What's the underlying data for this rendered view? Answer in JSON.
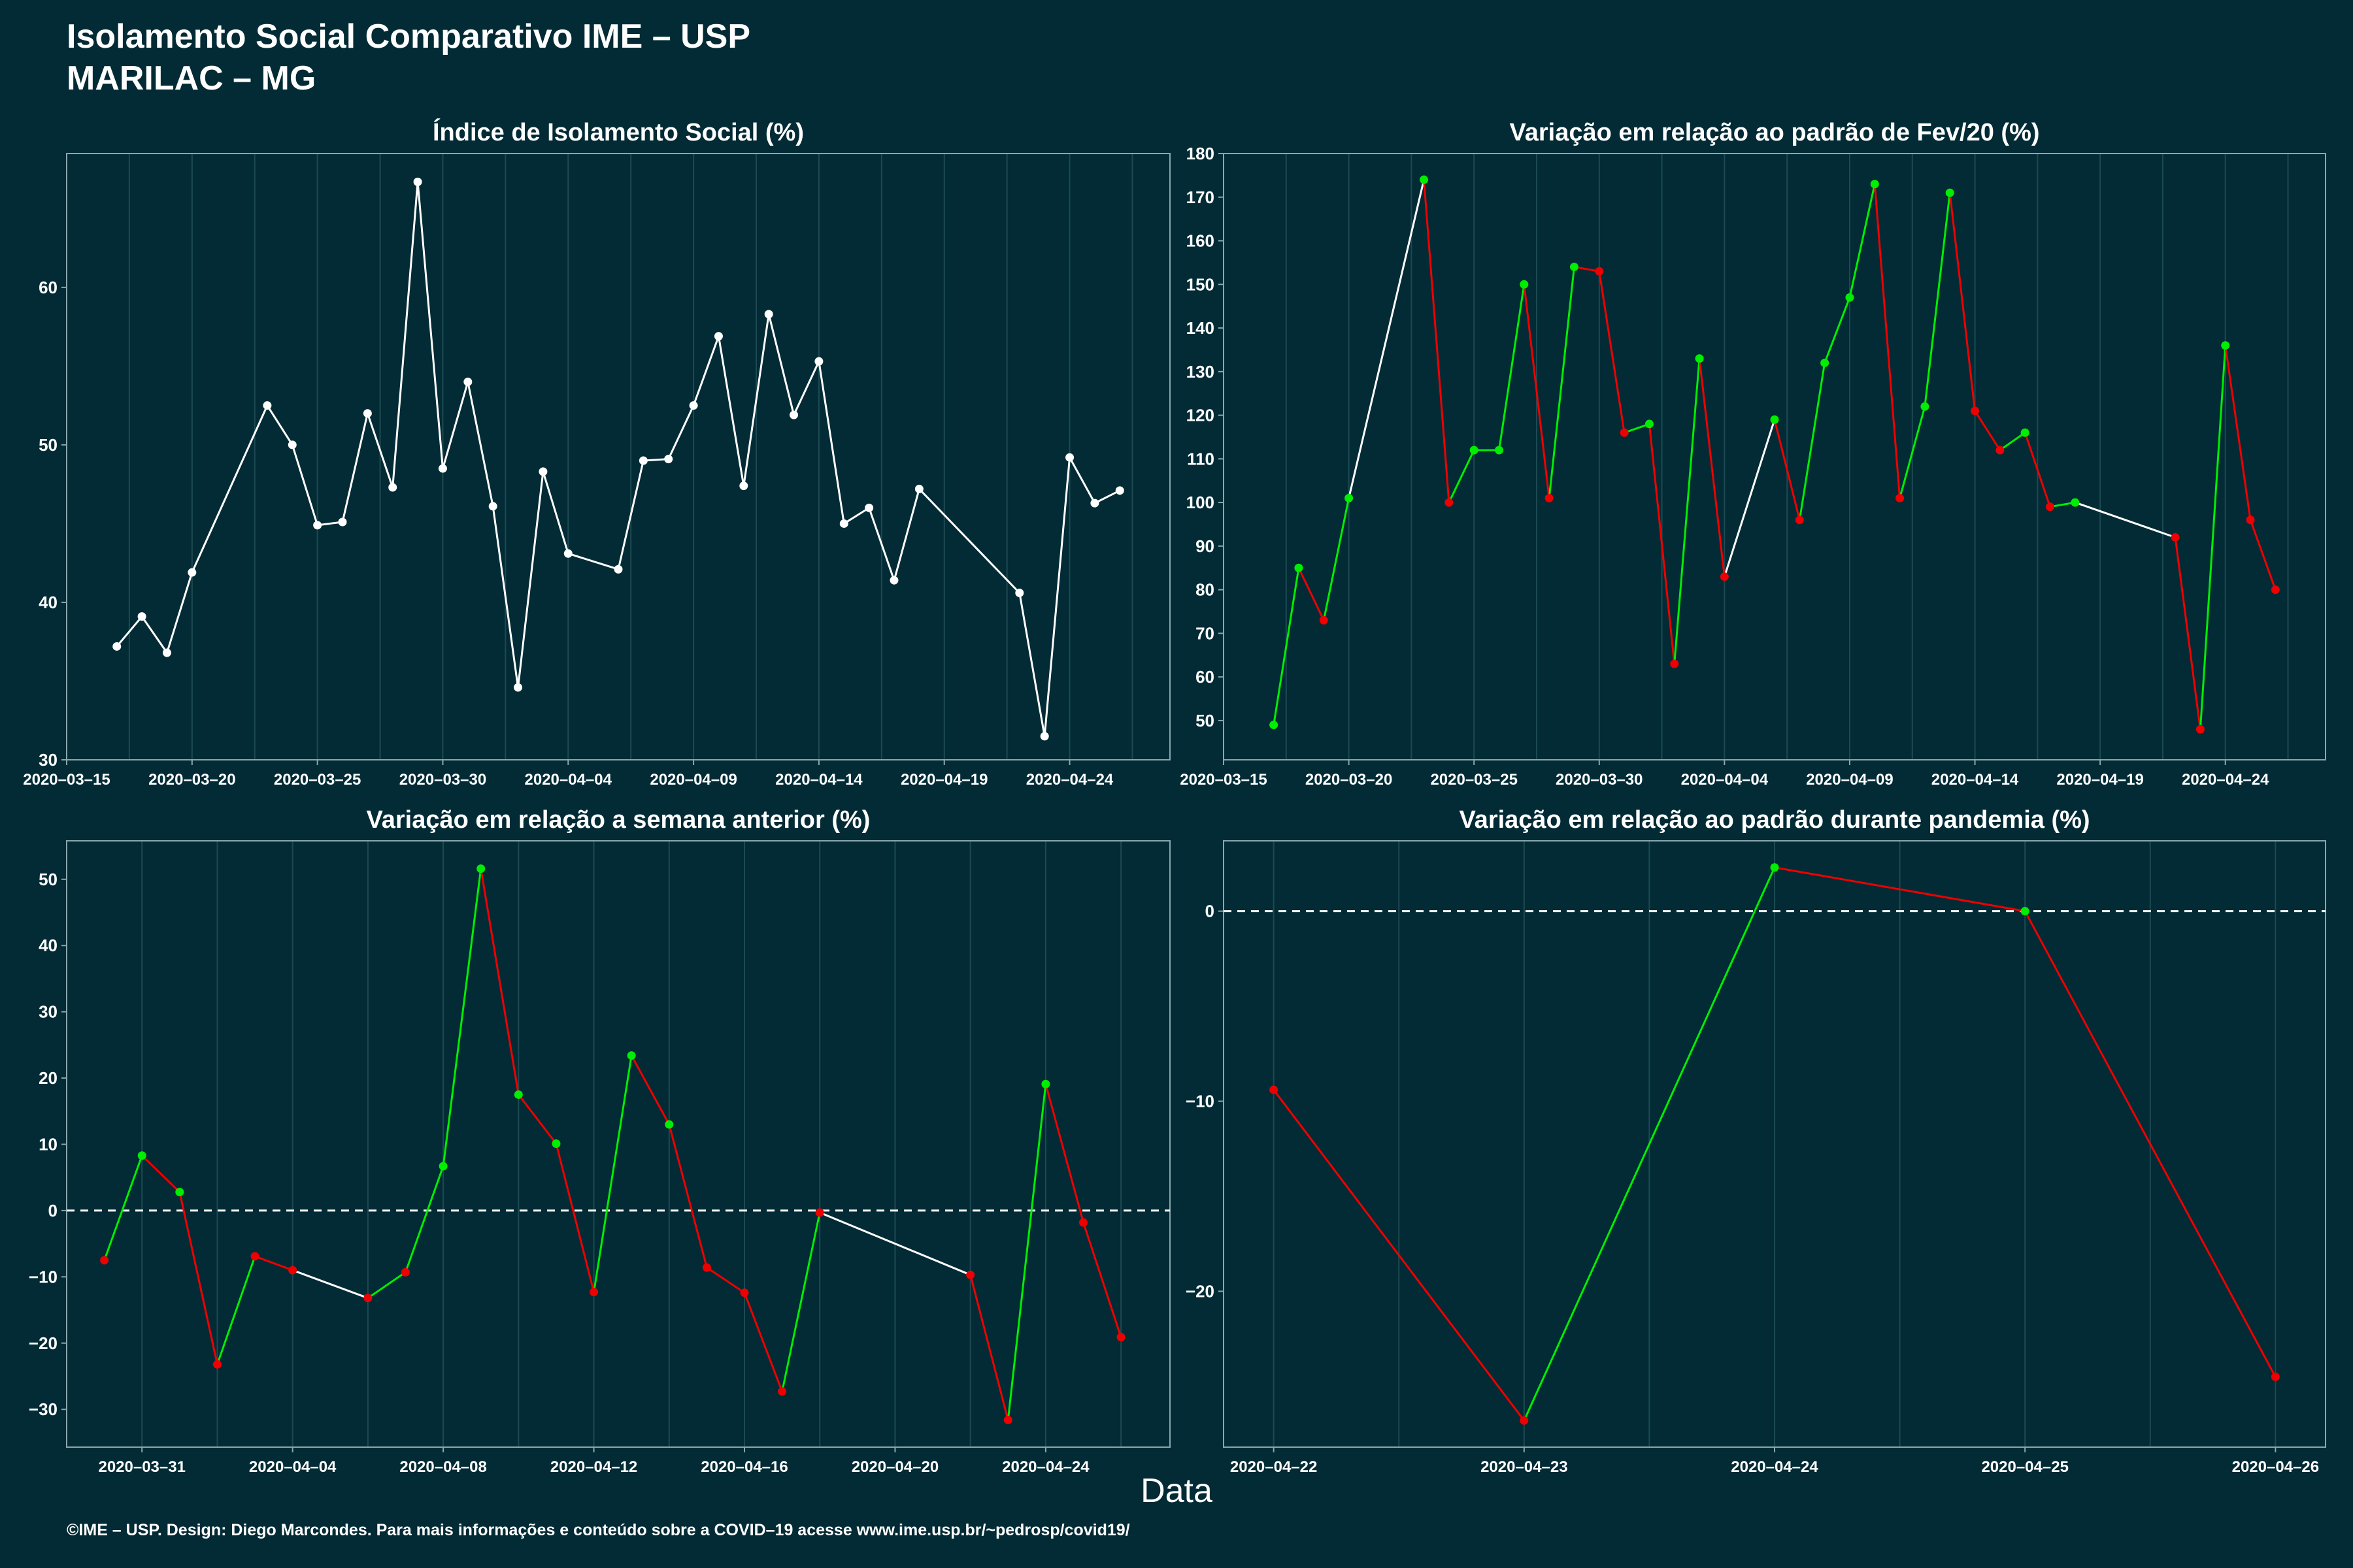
{
  "header": {
    "title": "Isolamento Social Comparativo IME – USP",
    "subtitle": "MARILAC – MG"
  },
  "x_axis_title": "Data",
  "footer": "©IME – USP. Design: Diego Marcondes. Para mais informações e conteúdo sobre a COVID–19 acesse www.ime.usp.br/~pedrosp/covid19/",
  "colors": {
    "background": "#022b35",
    "grid": "#1d4a52",
    "axis": "#8aa7ad",
    "neutral": "#ffffff",
    "positive": "#00ee00",
    "negative": "#ee0000"
  },
  "chart_data": [
    {
      "id": "isolation",
      "type": "line",
      "title": "Índice de Isolamento Social (%)",
      "color_mode": "white",
      "x": [
        "2020-03-17",
        "2020-03-18",
        "2020-03-19",
        "2020-03-20",
        "2020-03-23",
        "2020-03-24",
        "2020-03-25",
        "2020-03-26",
        "2020-03-27",
        "2020-03-28",
        "2020-03-29",
        "2020-03-30",
        "2020-03-31",
        "2020-04-01",
        "2020-04-02",
        "2020-04-03",
        "2020-04-04",
        "2020-04-06",
        "2020-04-07",
        "2020-04-08",
        "2020-04-09",
        "2020-04-10",
        "2020-04-11",
        "2020-04-12",
        "2020-04-13",
        "2020-04-14",
        "2020-04-15",
        "2020-04-16",
        "2020-04-17",
        "2020-04-18",
        "2020-04-22",
        "2020-04-23",
        "2020-04-24",
        "2020-04-25",
        "2020-04-26"
      ],
      "y": [
        37.2,
        39.1,
        36.8,
        41.9,
        52.5,
        50.0,
        44.9,
        45.1,
        52.0,
        47.3,
        66.7,
        48.5,
        54.0,
        46.1,
        34.6,
        48.3,
        43.1,
        42.1,
        49.0,
        49.1,
        52.5,
        56.9,
        47.4,
        58.3,
        51.9,
        55.3,
        45.0,
        46.0,
        41.4,
        47.2,
        40.6,
        31.5,
        49.2,
        46.3,
        47.1
      ],
      "x_ticks": [
        "2020-03-15",
        "2020-03-20",
        "2020-03-25",
        "2020-03-30",
        "2020-04-04",
        "2020-04-09",
        "2020-04-14",
        "2020-04-19",
        "2020-04-24"
      ],
      "x_range": [
        "2020-03-15",
        "2020-04-28"
      ],
      "y_ticks": [
        30,
        40,
        50,
        60
      ],
      "ylim": [
        30,
        68.5
      ],
      "zero_line": false
    },
    {
      "id": "feb-variation",
      "type": "line",
      "title": "Variação em relação ao padrão de Fev/20 (%)",
      "color_mode": "trend",
      "x": [
        "2020-03-17",
        "2020-03-18",
        "2020-03-19",
        "2020-03-20",
        "2020-03-23",
        "2020-03-24",
        "2020-03-25",
        "2020-03-26",
        "2020-03-27",
        "2020-03-28",
        "2020-03-29",
        "2020-03-30",
        "2020-03-31",
        "2020-04-01",
        "2020-04-02",
        "2020-04-03",
        "2020-04-04",
        "2020-04-06",
        "2020-04-07",
        "2020-04-08",
        "2020-04-09",
        "2020-04-10",
        "2020-04-11",
        "2020-04-12",
        "2020-04-13",
        "2020-04-14",
        "2020-04-15",
        "2020-04-16",
        "2020-04-17",
        "2020-04-18",
        "2020-04-22",
        "2020-04-23",
        "2020-04-24",
        "2020-04-25",
        "2020-04-26"
      ],
      "y": [
        49,
        85,
        73,
        101,
        174,
        100,
        112,
        112,
        150,
        101,
        154,
        153,
        116,
        118,
        63,
        133,
        83,
        119,
        96,
        132,
        147,
        173,
        101,
        122,
        171,
        121,
        112,
        116,
        99,
        100,
        92,
        48,
        136,
        96,
        80
      ],
      "x_ticks": [
        "2020-03-15",
        "2020-03-20",
        "2020-03-25",
        "2020-03-30",
        "2020-04-04",
        "2020-04-09",
        "2020-04-14",
        "2020-04-19",
        "2020-04-24"
      ],
      "x_range": [
        "2020-03-15",
        "2020-04-28"
      ],
      "y_ticks": [
        50,
        60,
        70,
        80,
        90,
        100,
        110,
        120,
        130,
        140,
        150,
        160,
        170,
        180
      ],
      "ylim": [
        41,
        180
      ],
      "zero_line": false
    },
    {
      "id": "week-variation",
      "type": "line",
      "title": "Variação em relação a semana anterior (%)",
      "color_mode": "trend",
      "x": [
        "2020-03-30",
        "2020-03-31",
        "2020-04-01",
        "2020-04-02",
        "2020-04-03",
        "2020-04-04",
        "2020-04-06",
        "2020-04-07",
        "2020-04-08",
        "2020-04-09",
        "2020-04-10",
        "2020-04-11",
        "2020-04-12",
        "2020-04-13",
        "2020-04-14",
        "2020-04-15",
        "2020-04-16",
        "2020-04-17",
        "2020-04-18",
        "2020-04-22",
        "2020-04-23",
        "2020-04-24",
        "2020-04-25",
        "2020-04-26"
      ],
      "y": [
        -7.5,
        8.3,
        2.8,
        -23.2,
        -6.9,
        -9.0,
        -13.2,
        -9.3,
        6.7,
        51.6,
        17.5,
        10.1,
        -12.3,
        23.4,
        13.0,
        -8.6,
        -12.4,
        -27.3,
        -0.3,
        -9.7,
        -31.6,
        19.1,
        -1.8,
        -19.1
      ],
      "x_ticks": [
        "2020-03-31",
        "2020-04-04",
        "2020-04-08",
        "2020-04-12",
        "2020-04-16",
        "2020-04-20",
        "2020-04-24"
      ],
      "x_range": [
        "2020-03-29",
        "2020-04-27.3"
      ],
      "y_ticks": [
        -30,
        -20,
        -10,
        0,
        10,
        20,
        30,
        40,
        50
      ],
      "ylim": [
        -35.7,
        55.8
      ],
      "zero_line": true
    },
    {
      "id": "pandemic-variation",
      "type": "line",
      "title": "Variação em relação ao padrão durante pandemia (%)",
      "color_mode": "trend",
      "x": [
        "2020-04-22",
        "2020-04-23",
        "2020-04-24",
        "2020-04-25",
        "2020-04-26"
      ],
      "y": [
        -9.4,
        -26.8,
        2.3,
        0.0,
        -24.5
      ],
      "x_ticks": [
        "2020-04-22",
        "2020-04-23",
        "2020-04-24",
        "2020-04-25",
        "2020-04-26"
      ],
      "x_range": [
        "2020-04-21.8",
        "2020-04-26.2"
      ],
      "y_ticks": [
        -20,
        -10,
        0
      ],
      "ylim": [
        -28.2,
        3.7
      ],
      "zero_line": true
    }
  ]
}
